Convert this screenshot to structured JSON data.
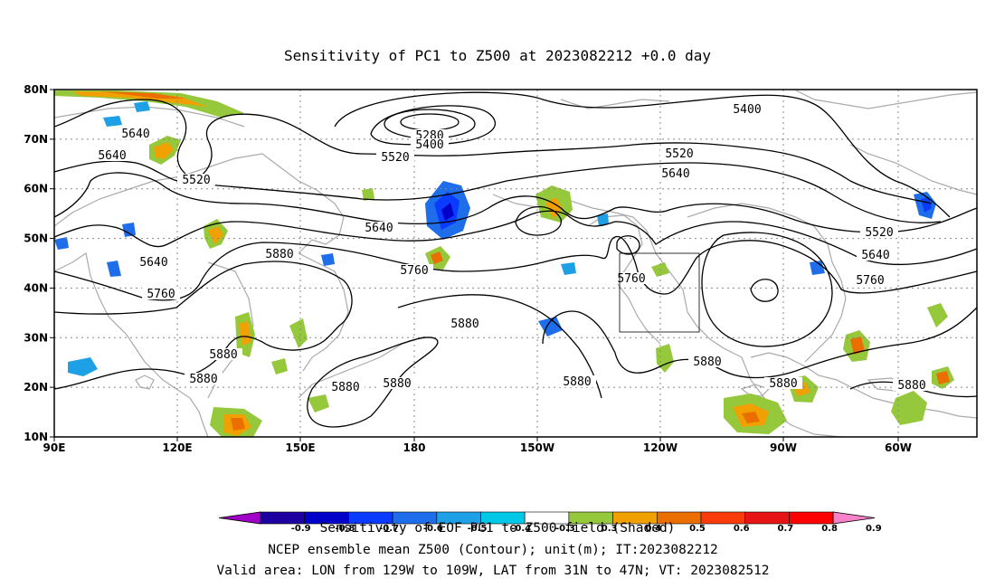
{
  "title": "Sensitivity of PC1 to Z500 at 2023082212 +0.0 day",
  "axes": {
    "lat_ticks": [
      "80N",
      "70N",
      "60N",
      "50N",
      "40N",
      "30N",
      "20N",
      "10N"
    ],
    "lon_ticks": [
      "90E",
      "120E",
      "150E",
      "180",
      "150W",
      "120W",
      "90W",
      "60W"
    ]
  },
  "contour_values": {
    "c5280": "5280",
    "c5400": "5400",
    "c5520": "5520",
    "c5640": "5640",
    "c5760": "5760",
    "c5880": "5880"
  },
  "valid_area": {
    "lon": [
      "129W",
      "109W"
    ],
    "lat": [
      "31N",
      "47N"
    ]
  },
  "colorbar": {
    "ticks": [
      "-0.9",
      "-0.8",
      "-0.7",
      "-0.6",
      "-0.5",
      "-0.4",
      "-0.3",
      "0.3",
      "0.4",
      "0.5",
      "0.6",
      "0.7",
      "0.8",
      "0.9"
    ],
    "colors": [
      "#a000c8",
      "#1e00a0",
      "#0000c8",
      "#0a3cff",
      "#1e6eeb",
      "#1ea0e6",
      "#00c8e6",
      "#ffffff",
      "#96c83c",
      "#f0a000",
      "#eb6e00",
      "#fa3c0a",
      "#e61414",
      "#ff0000",
      "#f582c8"
    ]
  },
  "footer": {
    "line1": "Sensitivity of EOF PC1 to Z500 field (Shaded)",
    "line2": "NCEP ensemble mean Z500 (Contour); unit(m); IT:2023082212",
    "line3": "Valid area: LON from 129W to 109W, LAT from 31N to 47N; VT: 2023082512"
  },
  "colors": {
    "coast": "#aaaaaa",
    "grid": "#888888",
    "contour": "#000000",
    "pos_low": "#96c83c",
    "pos_mid": "#f0a000",
    "pos_high": "#eb6e00",
    "pos_max": "#e61414",
    "neg_low": "#00c8e6",
    "neg_mid": "#1e6eeb",
    "neg_high": "#0a3cff"
  }
}
